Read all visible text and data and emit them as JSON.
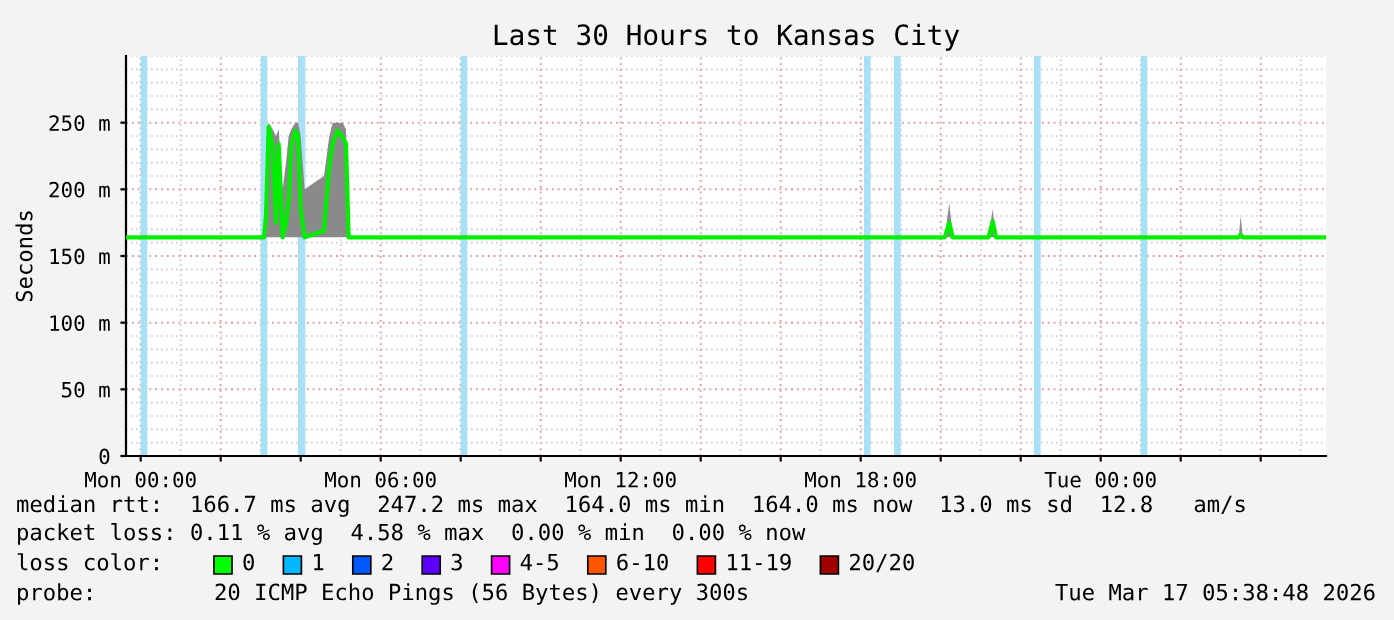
{
  "chart_data": {
    "type": "line",
    "title": "Last 30 Hours to Kansas City",
    "ylabel": "Seconds",
    "xlim": [
      "2026-03-15T23:38",
      "2026-03-17T05:38"
    ],
    "ylim": [
      0,
      300
    ],
    "xticks": [
      {
        "value": "2026-03-16T00:00",
        "label": "Mon 00:00"
      },
      {
        "value": "2026-03-16T02:00",
        "label": null
      },
      {
        "value": "2026-03-16T04:00",
        "label": null
      },
      {
        "value": "2026-03-16T06:00",
        "label": "Mon 06:00"
      },
      {
        "value": "2026-03-16T08:00",
        "label": null
      },
      {
        "value": "2026-03-16T10:00",
        "label": null
      },
      {
        "value": "2026-03-16T12:00",
        "label": "Mon 12:00"
      },
      {
        "value": "2026-03-16T14:00",
        "label": null
      },
      {
        "value": "2026-03-16T16:00",
        "label": null
      },
      {
        "value": "2026-03-16T18:00",
        "label": "Mon 18:00"
      },
      {
        "value": "2026-03-16T20:00",
        "label": null
      },
      {
        "value": "2026-03-16T22:00",
        "label": null
      },
      {
        "value": "2026-03-17T00:00",
        "label": "Tue 00:00"
      },
      {
        "value": "2026-03-17T02:00",
        "label": null
      },
      {
        "value": "2026-03-17T04:00",
        "label": null
      }
    ],
    "yticks": [
      0,
      {
        "value": 50,
        "label": "50 m"
      },
      {
        "value": 100,
        "label": "100 m"
      },
      {
        "value": 150,
        "label": "150 m"
      },
      {
        "value": 200,
        "label": "200 m"
      },
      {
        "value": 250,
        "label": "250 m"
      }
    ],
    "grid": true,
    "marker": "none",
    "line_style": "solid",
    "series": [
      {
        "color": "#00ee00",
        "x": [
          "2026-03-15T23:38",
          "2026-03-16T03:05",
          "2026-03-16T03:08",
          "2026-03-16T03:12",
          "2026-03-16T03:18",
          "2026-03-16T03:23",
          "2026-03-16T03:27",
          "2026-03-16T03:33",
          "2026-03-16T03:38",
          "2026-03-16T03:42",
          "2026-03-16T03:46",
          "2026-03-16T03:52",
          "2026-03-16T03:56",
          "2026-03-16T04:00",
          "2026-03-16T04:06",
          "2026-03-16T04:35",
          "2026-03-16T04:43",
          "2026-03-16T04:48",
          "2026-03-16T04:55",
          "2026-03-16T05:03",
          "2026-03-16T05:08",
          "2026-03-16T05:12",
          "2026-03-16T20:06",
          "2026-03-16T20:13",
          "2026-03-16T20:18",
          "2026-03-16T21:12",
          "2026-03-16T21:18",
          "2026-03-16T21:23",
          "2026-03-17T03:27",
          "2026-03-17T03:30",
          "2026-03-17T03:33",
          "2026-03-17T05:38"
        ],
        "values": [
          164,
          164,
          180,
          247,
          232,
          175,
          234,
          164,
          175,
          191,
          233,
          244,
          240,
          185,
          164,
          169,
          218,
          234,
          244,
          239,
          234,
          164,
          164,
          175,
          164,
          164,
          176,
          164,
          164,
          166,
          164,
          164
        ],
        "lower": [
          164,
          164,
          164,
          164,
          164,
          164,
          164,
          164,
          164,
          164,
          164,
          164,
          164,
          164,
          164,
          164,
          164,
          164,
          164,
          164,
          164,
          164,
          164,
          164,
          164,
          164,
          164,
          164,
          164,
          164,
          164,
          164
        ],
        "upper": [
          164,
          164,
          200,
          250,
          245,
          240,
          245,
          200,
          220,
          240,
          245,
          250,
          250,
          240,
          200,
          210,
          240,
          250,
          250,
          250,
          245,
          164,
          164,
          190,
          164,
          164,
          185,
          164,
          164,
          180,
          164,
          164
        ]
      }
    ],
    "bands": [
      {
        "axis": "x",
        "from": "2026-03-16T00:00",
        "to": "2026-03-16T00:10",
        "color": "#a8e0f8"
      },
      {
        "axis": "x",
        "from": "2026-03-16T03:00",
        "to": "2026-03-16T03:10",
        "color": "#a8e0f8"
      },
      {
        "axis": "x",
        "from": "2026-03-16T03:56",
        "to": "2026-03-16T04:07",
        "color": "#a8e0f8"
      },
      {
        "axis": "x",
        "from": "2026-03-16T08:00",
        "to": "2026-03-16T08:10",
        "color": "#a8e0f8"
      },
      {
        "axis": "x",
        "from": "2026-03-16T18:05",
        "to": "2026-03-16T18:15",
        "color": "#a8e0f8"
      },
      {
        "axis": "x",
        "from": "2026-03-16T18:50",
        "to": "2026-03-16T19:00",
        "color": "#a8e0f8"
      },
      {
        "axis": "x",
        "from": "2026-03-16T22:20",
        "to": "2026-03-16T22:30",
        "color": "#a8e0f8"
      },
      {
        "axis": "x",
        "from": "2026-03-17T01:00",
        "to": "2026-03-17T01:10",
        "color": "#a8e0f8"
      }
    ],
    "annotations": [
      "median rtt:  166.7 ms avg  247.2 ms max  164.0 ms min  164.0 ms now  13.0 ms sd  12.8   am/s",
      "packet loss: 0.11 % avg  4.58 % max  0.00 % min  0.00 % now",
      "loss color:",
      "0",
      "1",
      "2",
      "3",
      "4-5",
      "6-10",
      "11-19",
      "20/20",
      "probe:",
      "20 ICMP Echo Pings (56 Bytes) every 300s",
      "Tue Mar 17 05:38:48 2026"
    ]
  }
}
